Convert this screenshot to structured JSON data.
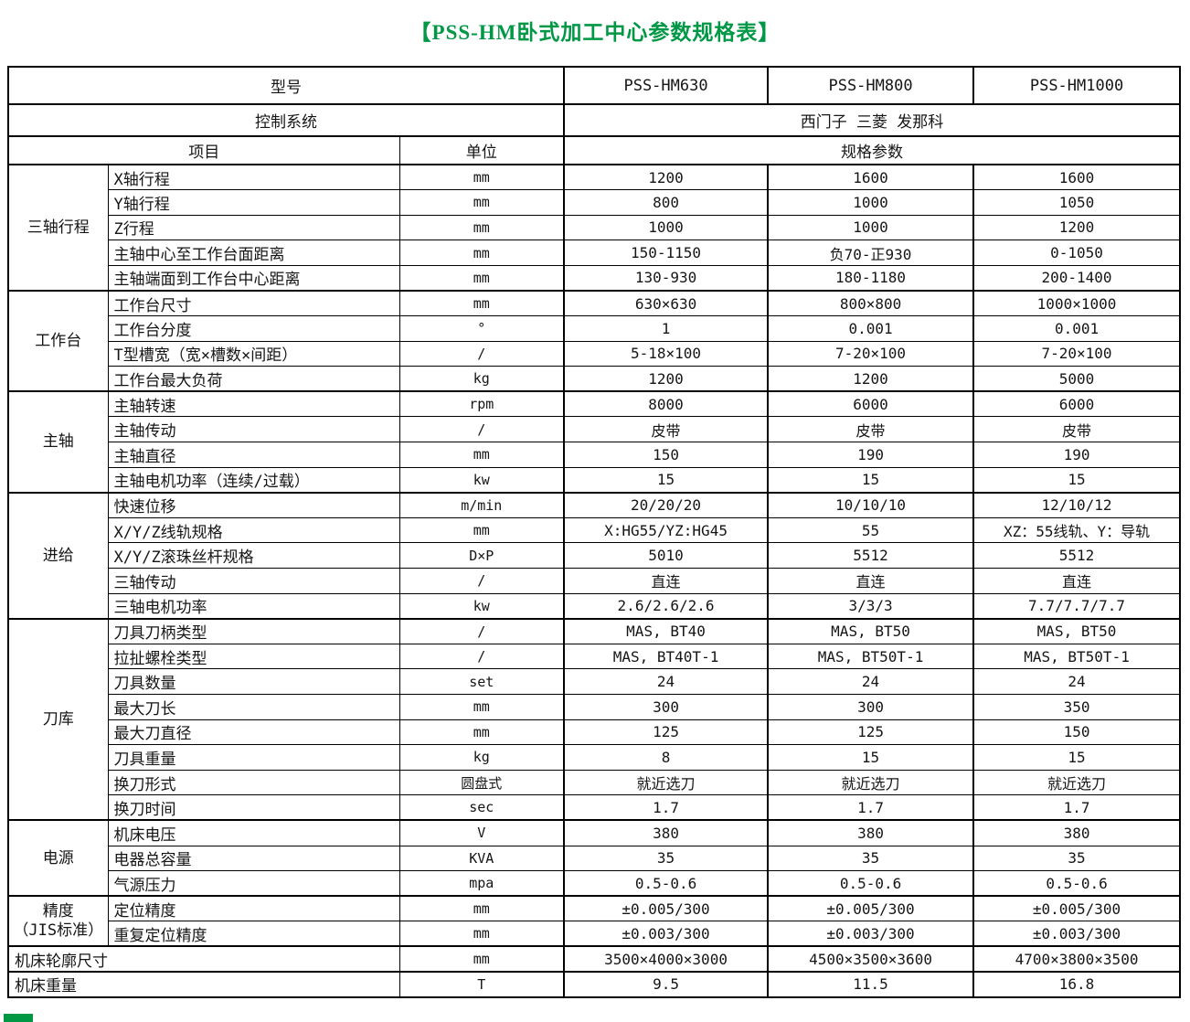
{
  "page": {
    "title": "【PSS-HM卧式加工中心参数规格表】",
    "accent_color": "#009845"
  },
  "table": {
    "header": {
      "model_label": "型号",
      "models": [
        "PSS-HM630",
        "PSS-HM800",
        "PSS-HM1000"
      ],
      "control_label": "控制系统",
      "control_value": "西门子 三菱 发那科",
      "item_label": "项目",
      "unit_label": "单位",
      "spec_label": "规格参数"
    },
    "sections": [
      {
        "group": "三轴行程",
        "rows": [
          {
            "item": "X轴行程",
            "unit": "mm",
            "values": [
              "1200",
              "1600",
              "1600"
            ]
          },
          {
            "item": "Y轴行程",
            "unit": "mm",
            "values": [
              "800",
              "1000",
              "1050"
            ]
          },
          {
            "item": "Z行程",
            "unit": "mm",
            "values": [
              "1000",
              "1000",
              "1200"
            ]
          },
          {
            "item": "主轴中心至工作台面距离",
            "unit": "mm",
            "values": [
              "150-1150",
              "负70-正930",
              "0-1050"
            ]
          },
          {
            "item": "主轴端面到工作台中心距离",
            "unit": "mm",
            "values": [
              "130-930",
              "180-1180",
              "200-1400"
            ]
          }
        ]
      },
      {
        "group": "工作台",
        "rows": [
          {
            "item": "工作台尺寸",
            "unit": "mm",
            "values": [
              "630×630",
              "800×800",
              "1000×1000"
            ]
          },
          {
            "item": "工作台分度",
            "unit": "°",
            "values": [
              "1",
              "0.001",
              "0.001"
            ]
          },
          {
            "item": "T型槽宽（宽×槽数×间距）",
            "unit": "/",
            "values": [
              "5-18×100",
              "7-20×100",
              "7-20×100"
            ]
          },
          {
            "item": "工作台最大负荷",
            "unit": "kg",
            "values": [
              "1200",
              "1200",
              "5000"
            ]
          }
        ]
      },
      {
        "group": "主轴",
        "rows": [
          {
            "item": "主轴转速",
            "unit": "rpm",
            "values": [
              "8000",
              "6000",
              "6000"
            ]
          },
          {
            "item": "主轴传动",
            "unit": "/",
            "values": [
              "皮带",
              "皮带",
              "皮带"
            ]
          },
          {
            "item": "主轴直径",
            "unit": "mm",
            "values": [
              "150",
              "190",
              "190"
            ]
          },
          {
            "item": "主轴电机功率（连续/过载）",
            "unit": "kw",
            "values": [
              "15",
              "15",
              "15"
            ]
          }
        ]
      },
      {
        "group": "进给",
        "rows": [
          {
            "item": "快速位移",
            "unit": "m/min",
            "values": [
              "20/20/20",
              "10/10/10",
              "12/10/12"
            ]
          },
          {
            "item": "X/Y/Z线轨规格",
            "unit": "mm",
            "values": [
              "X:HG55/YZ:HG45",
              "55",
              "XZ：55线轨、Y：导轨"
            ]
          },
          {
            "item": "X/Y/Z滚珠丝杆规格",
            "unit": "D×P",
            "values": [
              "5010",
              "5512",
              "5512"
            ]
          },
          {
            "item": "三轴传动",
            "unit": "/",
            "values": [
              "直连",
              "直连",
              "直连"
            ]
          },
          {
            "item": "三轴电机功率",
            "unit": "kw",
            "values": [
              "2.6/2.6/2.6",
              "3/3/3",
              "7.7/7.7/7.7"
            ]
          }
        ]
      },
      {
        "group": "刀库",
        "rows": [
          {
            "item": "刀具刀柄类型",
            "unit": "/",
            "values": [
              "MAS, BT40",
              "MAS, BT50",
              "MAS, BT50"
            ]
          },
          {
            "item": "拉扯螺栓类型",
            "unit": "/",
            "values": [
              "MAS, BT40T-1",
              "MAS, BT50T-1",
              "MAS, BT50T-1"
            ]
          },
          {
            "item": "刀具数量",
            "unit": "set",
            "values": [
              "24",
              "24",
              "24"
            ]
          },
          {
            "item": "最大刀长",
            "unit": "mm",
            "values": [
              "300",
              "300",
              "350"
            ]
          },
          {
            "item": "最大刀直径",
            "unit": "mm",
            "values": [
              "125",
              "125",
              "150"
            ]
          },
          {
            "item": "刀具重量",
            "unit": "kg",
            "values": [
              "8",
              "15",
              "15"
            ]
          },
          {
            "item": "换刀形式",
            "unit": "圆盘式",
            "values": [
              "就近选刀",
              "就近选刀",
              "就近选刀"
            ]
          },
          {
            "item": "换刀时间",
            "unit": "sec",
            "values": [
              "1.7",
              "1.7",
              "1.7"
            ]
          }
        ]
      },
      {
        "group": "电源",
        "rows": [
          {
            "item": "机床电压",
            "unit": "V",
            "values": [
              "380",
              "380",
              "380"
            ]
          },
          {
            "item": "电器总容量",
            "unit": "KVA",
            "values": [
              "35",
              "35",
              "35"
            ]
          },
          {
            "item": "气源压力",
            "unit": "mpa",
            "values": [
              "0.5-0.6",
              "0.5-0.6",
              "0.5-0.6"
            ]
          }
        ]
      },
      {
        "group": "精度\n（JIS标准）",
        "rows": [
          {
            "item": "定位精度",
            "unit": "mm",
            "values": [
              "±0.005/300",
              "±0.005/300",
              "±0.005/300"
            ]
          },
          {
            "item": "重复定位精度",
            "unit": "mm",
            "values": [
              "±0.003/300",
              "±0.003/300",
              "±0.003/300"
            ]
          }
        ]
      }
    ],
    "footer_rows": [
      {
        "item": "机床轮廓尺寸",
        "unit": "mm",
        "values": [
          "3500×4000×3000",
          "4500×3500×3600",
          "4700×3800×3500"
        ]
      },
      {
        "item": "机床重量",
        "unit": "T",
        "values": [
          "9.5",
          "11.5",
          "16.8"
        ]
      }
    ]
  }
}
